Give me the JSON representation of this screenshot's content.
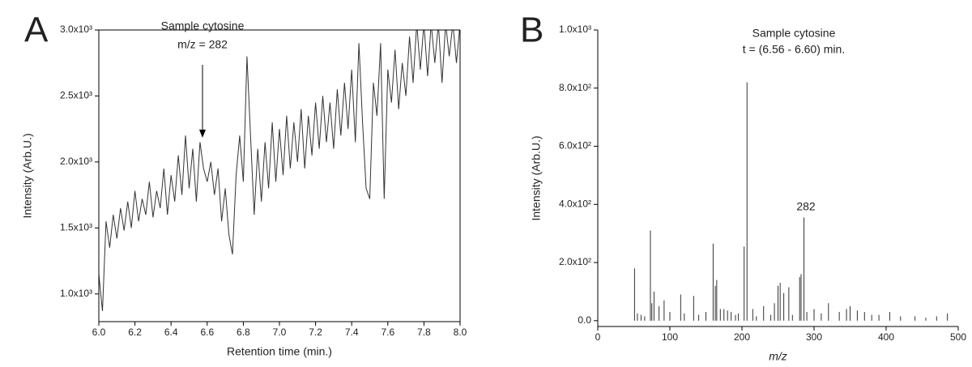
{
  "chart_data": [
    {
      "type": "line",
      "panel_label": "A",
      "ylabel": "Intensity (Arb.U.)",
      "xlabel": "Retention time (min.)",
      "annotations": [
        "Sample cytosine",
        "m/z = 282"
      ],
      "color": "#333333",
      "xlim": [
        6,
        8
      ],
      "ylim": [
        790,
        3000
      ],
      "xticks": [
        {
          "value": 6,
          "label": "6.0"
        },
        6.2,
        6.4,
        6.6,
        6.8,
        {
          "value": 7,
          "label": "7.0"
        },
        7.2,
        7.4,
        7.6,
        7.8,
        {
          "value": 8,
          "label": "8.0"
        }
      ],
      "yticks": [
        {
          "value": 1000,
          "label": "1.0x10³"
        },
        {
          "value": 1500,
          "label": "1.5x10³"
        },
        {
          "value": 2000,
          "label": "2.0x10³"
        },
        {
          "value": 2500,
          "label": "2.5x10³"
        },
        {
          "value": 3000,
          "label": "3.0x10³"
        }
      ],
      "x": [
        6.0,
        6.02,
        6.04,
        6.06,
        6.08,
        6.1,
        6.12,
        6.14,
        6.16,
        6.18,
        6.2,
        6.22,
        6.24,
        6.26,
        6.28,
        6.3,
        6.32,
        6.34,
        6.36,
        6.38,
        6.4,
        6.42,
        6.44,
        6.46,
        6.48,
        6.5,
        6.52,
        6.54,
        6.56,
        6.58,
        6.6,
        6.62,
        6.64,
        6.66,
        6.68,
        6.7,
        6.72,
        6.74,
        6.76,
        6.78,
        6.8,
        6.82,
        6.84,
        6.86,
        6.88,
        6.9,
        6.92,
        6.94,
        6.96,
        6.98,
        7.0,
        7.02,
        7.04,
        7.06,
        7.08,
        7.1,
        7.12,
        7.14,
        7.16,
        7.18,
        7.2,
        7.22,
        7.24,
        7.26,
        7.28,
        7.3,
        7.32,
        7.34,
        7.36,
        7.38,
        7.4,
        7.42,
        7.44,
        7.46,
        7.48,
        7.5,
        7.52,
        7.54,
        7.56,
        7.58,
        7.6,
        7.62,
        7.64,
        7.66,
        7.68,
        7.7,
        7.72,
        7.74,
        7.76,
        7.78,
        7.8,
        7.82,
        7.84,
        7.86,
        7.88,
        7.9,
        7.92,
        7.94,
        7.96,
        7.98,
        8.0
      ],
      "values": [
        1150,
        870,
        1550,
        1350,
        1600,
        1420,
        1650,
        1480,
        1700,
        1500,
        1780,
        1550,
        1720,
        1600,
        1850,
        1580,
        1780,
        1650,
        1950,
        1600,
        1900,
        1700,
        2050,
        1750,
        2200,
        1800,
        2100,
        1700,
        2150,
        1950,
        1850,
        2000,
        1750,
        1950,
        1550,
        1800,
        1450,
        1300,
        1900,
        2200,
        1850,
        2800,
        2200,
        1600,
        2100,
        1700,
        2150,
        1800,
        2300,
        1850,
        2250,
        1900,
        2350,
        1950,
        2300,
        2000,
        2400,
        1950,
        2350,
        2050,
        2450,
        2100,
        2500,
        2150,
        2450,
        2100,
        2550,
        2200,
        2600,
        2250,
        2700,
        2150,
        2900,
        2300,
        1800,
        1720,
        2600,
        2350,
        2900,
        1720,
        2700,
        2450,
        2850,
        2400,
        2750,
        2500,
        2950,
        2600,
        3050,
        2700,
        3050,
        2650,
        3050,
        2750,
        3050,
        2600,
        3050,
        2800,
        3050,
        2750,
        3050
      ]
    },
    {
      "type": "bar",
      "panel_label": "B",
      "ylabel": "Intensity (Arb.U.)",
      "xlabel": "m/z",
      "annotations": [
        "Sample cytosine",
        "t = (6.56 - 6.60) min.",
        "282"
      ],
      "color": "#333333",
      "xlim": [
        0,
        500
      ],
      "ylim": [
        -20,
        1000
      ],
      "xticks": [
        0,
        100,
        200,
        300,
        400,
        500
      ],
      "yticks": [
        {
          "value": 0,
          "label": "0.0"
        },
        {
          "value": 200,
          "label": "2.0x10²"
        },
        {
          "value": 400,
          "label": "4.0x10²"
        },
        {
          "value": 600,
          "label": "6.0x10²"
        },
        {
          "value": 800,
          "label": "8.0x10²"
        },
        {
          "value": 1000,
          "label": "1.0x10³"
        }
      ],
      "x": [
        51,
        55,
        60,
        65,
        73,
        75,
        78,
        85,
        92,
        100,
        115,
        120,
        133,
        140,
        150,
        160,
        163,
        165,
        170,
        175,
        180,
        185,
        191,
        195,
        203,
        207,
        215,
        220,
        230,
        240,
        245,
        250,
        253,
        258,
        265,
        270,
        280,
        282,
        286,
        290,
        300,
        310,
        320,
        335,
        345,
        350,
        360,
        370,
        380,
        390,
        405,
        420,
        440,
        455,
        470,
        485
      ],
      "values": [
        180,
        25,
        20,
        15,
        310,
        60,
        100,
        50,
        70,
        30,
        90,
        25,
        85,
        20,
        30,
        265,
        120,
        140,
        40,
        40,
        35,
        30,
        20,
        25,
        255,
        820,
        40,
        15,
        50,
        20,
        60,
        120,
        130,
        95,
        115,
        20,
        150,
        160,
        355,
        30,
        40,
        25,
        60,
        30,
        40,
        50,
        35,
        30,
        20,
        20,
        30,
        15,
        15,
        10,
        15,
        25
      ]
    }
  ]
}
